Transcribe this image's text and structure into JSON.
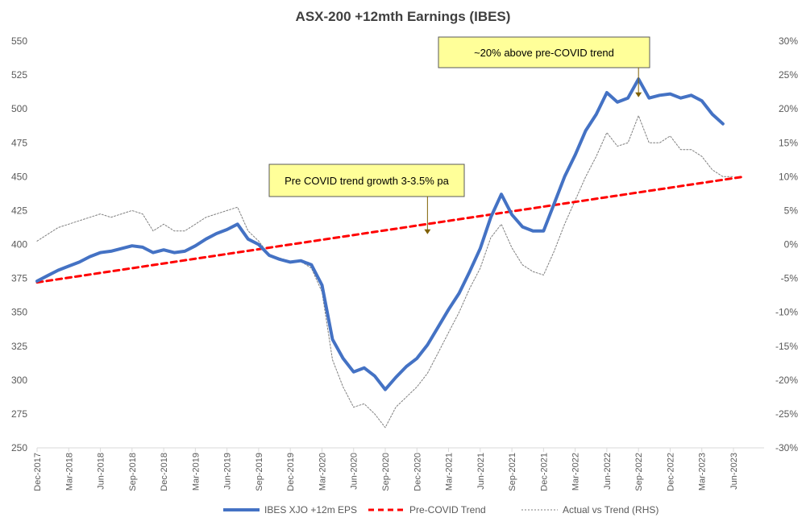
{
  "chart_data": {
    "type": "line",
    "title": "ASX-200 +12mth Earnings (IBES)",
    "x_tick_labels": [
      "Dec-2017",
      "Mar-2018",
      "Jun-2018",
      "Sep-2018",
      "Dec-2018",
      "Mar-2019",
      "Jun-2019",
      "Sep-2019",
      "Dec-2019",
      "Mar-2020",
      "Jun-2020",
      "Sep-2020",
      "Dec-2020",
      "Mar-2021",
      "Jun-2021",
      "Sep-2021",
      "Dec-2021",
      "Mar-2022",
      "Jun-2022",
      "Sep-2022",
      "Dec-2022",
      "Mar-2023",
      "Jun-2023"
    ],
    "y_left": {
      "min": 250,
      "max": 550,
      "ticks": [
        250,
        275,
        300,
        325,
        350,
        375,
        400,
        425,
        450,
        475,
        500,
        525,
        550
      ]
    },
    "y_right": {
      "min": -30,
      "max": 30,
      "tick_labels": [
        "-30%",
        "-25%",
        "-20%",
        "-15%",
        "-10%",
        "-5%",
        "0%",
        "5%",
        "10%",
        "15%",
        "20%",
        "25%",
        "30%"
      ]
    },
    "grid": false,
    "legend_position": "bottom",
    "series": [
      {
        "name": "IBES XJO +12m EPS",
        "axis": "left",
        "color": "#4472C4",
        "style": "solid",
        "points": [
          [
            "Dec-2017",
            373
          ],
          [
            "Jan-2018",
            377
          ],
          [
            "Feb-2018",
            381
          ],
          [
            "Mar-2018",
            384
          ],
          [
            "Apr-2018",
            387
          ],
          [
            "May-2018",
            391
          ],
          [
            "Jun-2018",
            394
          ],
          [
            "Jul-2018",
            395
          ],
          [
            "Aug-2018",
            397
          ],
          [
            "Sep-2018",
            399
          ],
          [
            "Oct-2018",
            398
          ],
          [
            "Nov-2018",
            394
          ],
          [
            "Dec-2018",
            396
          ],
          [
            "Jan-2019",
            394
          ],
          [
            "Feb-2019",
            395
          ],
          [
            "Mar-2019",
            399
          ],
          [
            "Apr-2019",
            404
          ],
          [
            "May-2019",
            408
          ],
          [
            "Jun-2019",
            411
          ],
          [
            "Jul-2019",
            415
          ],
          [
            "Aug-2019",
            404
          ],
          [
            "Sep-2019",
            400
          ],
          [
            "Oct-2019",
            392
          ],
          [
            "Nov-2019",
            389
          ],
          [
            "Dec-2019",
            387
          ],
          [
            "Jan-2020",
            388
          ],
          [
            "Feb-2020",
            385
          ],
          [
            "Mar-2020",
            370
          ],
          [
            "Apr-2020",
            330
          ],
          [
            "May-2020",
            316
          ],
          [
            "Jun-2020",
            306
          ],
          [
            "Jul-2020",
            309
          ],
          [
            "Aug-2020",
            303
          ],
          [
            "Sep-2020",
            293
          ],
          [
            "Oct-2020",
            302
          ],
          [
            "Nov-2020",
            310
          ],
          [
            "Dec-2020",
            316
          ],
          [
            "Jan-2021",
            326
          ],
          [
            "Feb-2021",
            339
          ],
          [
            "Mar-2021",
            352
          ],
          [
            "Apr-2021",
            364
          ],
          [
            "May-2021",
            380
          ],
          [
            "Jun-2021",
            397
          ],
          [
            "Jul-2021",
            420
          ],
          [
            "Aug-2021",
            437
          ],
          [
            "Sep-2021",
            422
          ],
          [
            "Oct-2021",
            413
          ],
          [
            "Nov-2021",
            410
          ],
          [
            "Dec-2021",
            410
          ],
          [
            "Jan-2022",
            430
          ],
          [
            "Feb-2022",
            450
          ],
          [
            "Mar-2022",
            466
          ],
          [
            "Apr-2022",
            484
          ],
          [
            "May-2022",
            496
          ],
          [
            "Jun-2022",
            512
          ],
          [
            "Jul-2022",
            505
          ],
          [
            "Aug-2022",
            508
          ],
          [
            "Sep-2022",
            522
          ],
          [
            "Oct-2022",
            508
          ],
          [
            "Nov-2022",
            510
          ],
          [
            "Dec-2022",
            511
          ],
          [
            "Jan-2023",
            508
          ],
          [
            "Feb-2023",
            510
          ],
          [
            "Mar-2023",
            506
          ],
          [
            "Apr-2023",
            496
          ],
          [
            "May-2023",
            489
          ]
        ]
      },
      {
        "name": "Pre-COVID Trend",
        "axis": "left",
        "color": "#FF0000",
        "style": "dashed",
        "points": [
          [
            "Dec-2017",
            372
          ],
          [
            "Jul-2023",
            450
          ]
        ]
      },
      {
        "name": "Actual vs Trend (RHS)",
        "axis": "right",
        "color": "#7F7F7F",
        "style": "dotted",
        "points": [
          [
            "Dec-2017",
            0.5
          ],
          [
            "Jan-2018",
            1.5
          ],
          [
            "Feb-2018",
            2.5
          ],
          [
            "Mar-2018",
            3
          ],
          [
            "Apr-2018",
            3.5
          ],
          [
            "May-2018",
            4
          ],
          [
            "Jun-2018",
            4.5
          ],
          [
            "Jul-2018",
            4
          ],
          [
            "Aug-2018",
            4.5
          ],
          [
            "Sep-2018",
            5
          ],
          [
            "Oct-2018",
            4.5
          ],
          [
            "Nov-2018",
            2
          ],
          [
            "Dec-2018",
            3
          ],
          [
            "Jan-2019",
            2
          ],
          [
            "Feb-2019",
            2
          ],
          [
            "Mar-2019",
            3
          ],
          [
            "Apr-2019",
            4
          ],
          [
            "May-2019",
            4.5
          ],
          [
            "Jun-2019",
            5
          ],
          [
            "Jul-2019",
            5.5
          ],
          [
            "Aug-2019",
            2
          ],
          [
            "Sep-2019",
            0.5
          ],
          [
            "Oct-2019",
            -1.5
          ],
          [
            "Nov-2019",
            -2
          ],
          [
            "Dec-2019",
            -2.5
          ],
          [
            "Jan-2020",
            -2.5
          ],
          [
            "Feb-2020",
            -3.5
          ],
          [
            "Mar-2020",
            -7
          ],
          [
            "Apr-2020",
            -17
          ],
          [
            "May-2020",
            -21
          ],
          [
            "Jun-2020",
            -24
          ],
          [
            "Jul-2020",
            -23.5
          ],
          [
            "Aug-2020",
            -25
          ],
          [
            "Sep-2020",
            -27
          ],
          [
            "Oct-2020",
            -24
          ],
          [
            "Nov-2020",
            -22.5
          ],
          [
            "Dec-2020",
            -21
          ],
          [
            "Jan-2021",
            -19
          ],
          [
            "Feb-2021",
            -16
          ],
          [
            "Mar-2021",
            -13
          ],
          [
            "Apr-2021",
            -10
          ],
          [
            "May-2021",
            -6.5
          ],
          [
            "Jun-2021",
            -3.5
          ],
          [
            "Jul-2021",
            1
          ],
          [
            "Aug-2021",
            3
          ],
          [
            "Sep-2021",
            -0.5
          ],
          [
            "Oct-2021",
            -3
          ],
          [
            "Nov-2021",
            -4
          ],
          [
            "Dec-2021",
            -4.5
          ],
          [
            "Jan-2022",
            -1
          ],
          [
            "Feb-2022",
            3
          ],
          [
            "Mar-2022",
            6.5
          ],
          [
            "Apr-2022",
            10
          ],
          [
            "May-2022",
            13
          ],
          [
            "Jun-2022",
            16.5
          ],
          [
            "Jul-2022",
            14.5
          ],
          [
            "Aug-2022",
            15
          ],
          [
            "Sep-2022",
            19
          ],
          [
            "Oct-2022",
            15
          ],
          [
            "Nov-2022",
            15
          ],
          [
            "Dec-2022",
            16
          ],
          [
            "Jan-2023",
            14
          ],
          [
            "Feb-2023",
            14
          ],
          [
            "Mar-2023",
            13
          ],
          [
            "Apr-2023",
            11
          ],
          [
            "May-2023",
            10
          ],
          [
            "Jun-2023",
            10
          ]
        ]
      }
    ],
    "annotations": [
      {
        "text": "Pre COVID trend growth 3-3.5% pa",
        "arrow_to": [
          "Jan-2021",
          407
        ]
      },
      {
        "text": "~20% above pre-COVID trend",
        "arrow_to": [
          "Sep-2022",
          508
        ]
      }
    ]
  }
}
